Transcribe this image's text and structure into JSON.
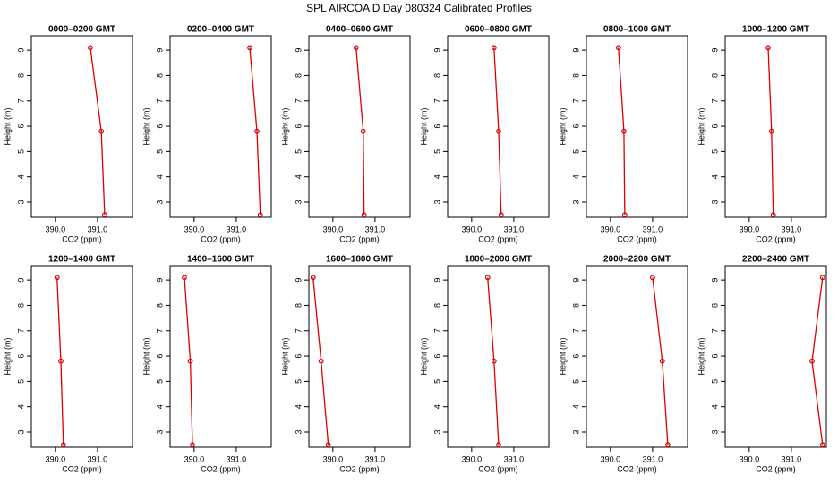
{
  "title": "SPL AIRCOA D  Day 080324  Calibrated Profiles",
  "chart_data": [
    {
      "type": "line",
      "title": "0000–0200 GMT",
      "xlabel": "CO2 (ppm)",
      "ylabel": "Height (m)",
      "x": [
        390.83,
        391.09,
        391.17
      ],
      "y": [
        9.1,
        5.8,
        2.5
      ],
      "color": "#dd0000",
      "xlim": [
        389.43,
        391.83
      ],
      "ylim": [
        2.4,
        9.57
      ],
      "xticks": [
        {
          "value": 390,
          "label": "390.0"
        },
        {
          "value": 391,
          "label": "391.0"
        }
      ],
      "yticks": [
        3,
        4,
        5,
        6,
        7,
        8,
        9
      ]
    },
    {
      "type": "line",
      "title": "0200–0400 GMT",
      "xlabel": "CO2 (ppm)",
      "ylabel": "Height (m)",
      "x": [
        391.32,
        391.49,
        391.57
      ],
      "y": [
        9.1,
        5.8,
        2.5
      ],
      "color": "#dd0000",
      "xlim": [
        389.43,
        391.83
      ],
      "ylim": [
        2.4,
        9.57
      ],
      "xticks": [
        {
          "value": 390,
          "label": "390.0"
        },
        {
          "value": 391,
          "label": "391.0"
        }
      ],
      "yticks": [
        3,
        4,
        5,
        6,
        7,
        8,
        9
      ]
    },
    {
      "type": "line",
      "title": "0400–0600 GMT",
      "xlabel": "CO2 (ppm)",
      "ylabel": "Height (m)",
      "x": [
        390.55,
        390.72,
        390.74
      ],
      "y": [
        9.1,
        5.8,
        2.5
      ],
      "color": "#dd0000",
      "xlim": [
        389.43,
        391.83
      ],
      "ylim": [
        2.4,
        9.57
      ],
      "xticks": [
        {
          "value": 390,
          "label": "390.0"
        },
        {
          "value": 391,
          "label": "391.0"
        }
      ],
      "yticks": [
        3,
        4,
        5,
        6,
        7,
        8,
        9
      ]
    },
    {
      "type": "line",
      "title": "0600–0800 GMT",
      "xlabel": "CO2 (ppm)",
      "ylabel": "Height (m)",
      "x": [
        390.53,
        390.64,
        390.7
      ],
      "y": [
        9.1,
        5.8,
        2.5
      ],
      "color": "#dd0000",
      "xlim": [
        389.43,
        391.83
      ],
      "ylim": [
        2.4,
        9.57
      ],
      "xticks": [
        {
          "value": 390,
          "label": "390.0"
        },
        {
          "value": 391,
          "label": "391.0"
        }
      ],
      "yticks": [
        3,
        4,
        5,
        6,
        7,
        8,
        9
      ]
    },
    {
      "type": "line",
      "title": "0800–1000 GMT",
      "xlabel": "CO2 (ppm)",
      "ylabel": "Height (m)",
      "x": [
        390.19,
        390.32,
        390.34
      ],
      "y": [
        9.1,
        5.8,
        2.5
      ],
      "color": "#dd0000",
      "xlim": [
        389.43,
        391.83
      ],
      "ylim": [
        2.4,
        9.57
      ],
      "xticks": [
        {
          "value": 390,
          "label": "390.0"
        },
        {
          "value": 391,
          "label": "391.0"
        }
      ],
      "yticks": [
        3,
        4,
        5,
        6,
        7,
        8,
        9
      ]
    },
    {
      "type": "line",
      "title": "1000–1200 GMT",
      "xlabel": "CO2 (ppm)",
      "ylabel": "Height (m)",
      "x": [
        390.45,
        390.53,
        390.57
      ],
      "y": [
        9.1,
        5.8,
        2.5
      ],
      "color": "#dd0000",
      "xlim": [
        389.43,
        391.83
      ],
      "ylim": [
        2.4,
        9.57
      ],
      "xticks": [
        {
          "value": 390,
          "label": "390.0"
        },
        {
          "value": 391,
          "label": "391.0"
        }
      ],
      "yticks": [
        3,
        4,
        5,
        6,
        7,
        8,
        9
      ]
    },
    {
      "type": "line",
      "title": "1200–1400 GMT",
      "xlabel": "CO2 (ppm)",
      "ylabel": "Height (m)",
      "x": [
        390.04,
        390.13,
        390.19
      ],
      "y": [
        9.1,
        5.8,
        2.5
      ],
      "color": "#dd0000",
      "xlim": [
        389.43,
        391.83
      ],
      "ylim": [
        2.4,
        9.57
      ],
      "xticks": [
        {
          "value": 390,
          "label": "390.0"
        },
        {
          "value": 391,
          "label": "391.0"
        }
      ],
      "yticks": [
        3,
        4,
        5,
        6,
        7,
        8,
        9
      ]
    },
    {
      "type": "line",
      "title": "1400–1600 GMT",
      "xlabel": "CO2 (ppm)",
      "ylabel": "Height (m)",
      "x": [
        389.77,
        389.91,
        389.96
      ],
      "y": [
        9.1,
        5.8,
        2.5
      ],
      "color": "#dd0000",
      "xlim": [
        389.43,
        391.83
      ],
      "ylim": [
        2.4,
        9.57
      ],
      "xticks": [
        {
          "value": 390,
          "label": "390.0"
        },
        {
          "value": 391,
          "label": "391.0"
        }
      ],
      "yticks": [
        3,
        4,
        5,
        6,
        7,
        8,
        9
      ]
    },
    {
      "type": "line",
      "title": "1600–1800 GMT",
      "xlabel": "CO2 (ppm)",
      "ylabel": "Height (m)",
      "x": [
        389.53,
        389.72,
        389.89
      ],
      "y": [
        9.1,
        5.8,
        2.5
      ],
      "color": "#dd0000",
      "xlim": [
        389.43,
        391.83
      ],
      "ylim": [
        2.4,
        9.57
      ],
      "xticks": [
        {
          "value": 390,
          "label": "390.0"
        },
        {
          "value": 391,
          "label": "391.0"
        }
      ],
      "yticks": [
        3,
        4,
        5,
        6,
        7,
        8,
        9
      ]
    },
    {
      "type": "line",
      "title": "1800–2000 GMT",
      "xlabel": "CO2 (ppm)",
      "ylabel": "Height (m)",
      "x": [
        390.38,
        390.53,
        390.64
      ],
      "y": [
        9.1,
        5.8,
        2.5
      ],
      "color": "#dd0000",
      "xlim": [
        389.43,
        391.83
      ],
      "ylim": [
        2.4,
        9.57
      ],
      "xticks": [
        {
          "value": 390,
          "label": "390.0"
        },
        {
          "value": 391,
          "label": "391.0"
        }
      ],
      "yticks": [
        3,
        4,
        5,
        6,
        7,
        8,
        9
      ]
    },
    {
      "type": "line",
      "title": "2000–2200 GMT",
      "xlabel": "CO2 (ppm)",
      "ylabel": "Height (m)",
      "x": [
        391.0,
        391.23,
        391.36
      ],
      "y": [
        9.1,
        5.8,
        2.5
      ],
      "color": "#dd0000",
      "xlim": [
        389.43,
        391.83
      ],
      "ylim": [
        2.4,
        9.57
      ],
      "xticks": [
        {
          "value": 390,
          "label": "390.0"
        },
        {
          "value": 391,
          "label": "391.0"
        }
      ],
      "yticks": [
        3,
        4,
        5,
        6,
        7,
        8,
        9
      ]
    },
    {
      "type": "line",
      "title": "2200–2400 GMT",
      "xlabel": "CO2 (ppm)",
      "ylabel": "Height (m)",
      "x": [
        391.74,
        391.49,
        391.74
      ],
      "y": [
        9.1,
        5.8,
        2.5
      ],
      "color": "#dd0000",
      "xlim": [
        389.43,
        391.83
      ],
      "ylim": [
        2.4,
        9.57
      ],
      "xticks": [
        {
          "value": 390,
          "label": "390.0"
        },
        {
          "value": 391,
          "label": "391.0"
        }
      ],
      "yticks": [
        3,
        4,
        5,
        6,
        7,
        8,
        9
      ]
    }
  ]
}
